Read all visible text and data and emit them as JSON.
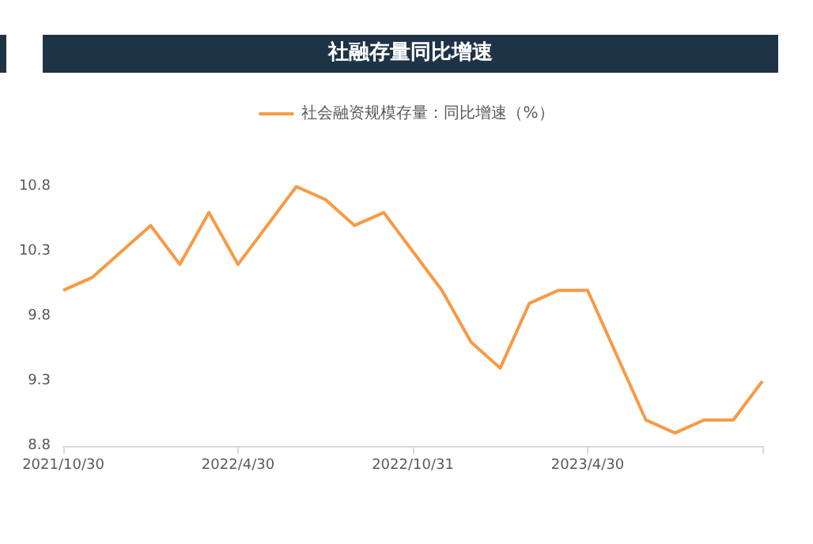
{
  "chart_data": {
    "type": "line",
    "title": "社融存量同比增速",
    "categories": [
      "2021/10/30",
      null,
      null,
      null,
      null,
      null,
      "2022/4/30",
      null,
      null,
      null,
      null,
      null,
      "2022/10/31",
      null,
      null,
      null,
      null,
      null,
      "2023/4/30",
      null,
      null,
      null,
      null,
      null,
      null
    ],
    "series": [
      {
        "name": "社会融资规模存量：同比增速（%）",
        "color": "#f79a46",
        "values": [
          10.0,
          10.1,
          10.3,
          10.5,
          10.2,
          10.6,
          10.2,
          10.5,
          10.8,
          10.7,
          10.5,
          10.6,
          10.3,
          10.0,
          9.6,
          9.4,
          9.9,
          10.0,
          10.0,
          9.5,
          9.0,
          8.9,
          9.0,
          9.0,
          9.3
        ]
      }
    ],
    "ylim": [
      8.8,
      10.8
    ],
    "yticks": [
      8.8,
      9.3,
      9.8,
      10.3,
      10.8
    ],
    "grid": false,
    "legend": "top",
    "marker": "none",
    "line_style": "solid"
  }
}
